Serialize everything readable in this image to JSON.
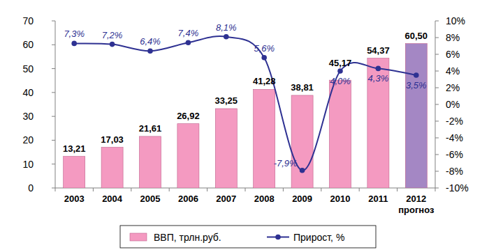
{
  "chart_data": {
    "type": "bar",
    "categories": [
      "2003",
      "2004",
      "2005",
      "2006",
      "2007",
      "2008",
      "2009",
      "2010",
      "2011",
      "2012 прогноз"
    ],
    "series": [
      {
        "name": "ВВП, трлн.руб.",
        "type": "bar",
        "colors": [
          "#f49ac1",
          "#f49ac1",
          "#f49ac1",
          "#f49ac1",
          "#f49ac1",
          "#f49ac1",
          "#f49ac1",
          "#f49ac1",
          "#f49ac1",
          "#a487c4"
        ],
        "values": [
          13.21,
          17.03,
          21.61,
          26.92,
          33.25,
          41.28,
          38.81,
          45.17,
          54.37,
          60.5
        ],
        "value_labels": [
          "13,21",
          "17,03",
          "21,61",
          "26,92",
          "33,25",
          "41,28",
          "38,81",
          "45,17",
          "54,37",
          "60,50"
        ]
      },
      {
        "name": "Прирост, %",
        "type": "line",
        "axis": "y2",
        "color": "#2e3192",
        "marker": "circle",
        "line_style": "solid",
        "values": [
          7.3,
          7.2,
          6.4,
          7.4,
          8.1,
          5.6,
          -7.9,
          4.0,
          4.3,
          3.5
        ],
        "value_labels": [
          "7,3%",
          "7,2%",
          "6,4%",
          "7,4%",
          "8,1%",
          "5,6%",
          "-7,9%",
          "4,0%",
          "4,3%",
          "3,5%"
        ]
      }
    ],
    "ylim": [
      0,
      70
    ],
    "yticks": [
      0,
      10,
      20,
      30,
      40,
      50,
      60,
      70
    ],
    "y2lim": [
      -10,
      10
    ],
    "y2ticks": [
      {
        "value": -10,
        "label": "-10%"
      },
      {
        "value": -8,
        "label": "-8%"
      },
      {
        "value": -6,
        "label": "-6%"
      },
      {
        "value": -4,
        "label": "-4%"
      },
      {
        "value": -2,
        "label": "-2%"
      },
      {
        "value": 0,
        "label": "0%"
      },
      {
        "value": 2,
        "label": "2%"
      },
      {
        "value": 4,
        "label": "4%"
      },
      {
        "value": 6,
        "label": "6%"
      },
      {
        "value": 8,
        "label": "8%"
      },
      {
        "value": 10,
        "label": "10%"
      }
    ],
    "grid": false,
    "legend": "bottom",
    "data_labels": true
  }
}
